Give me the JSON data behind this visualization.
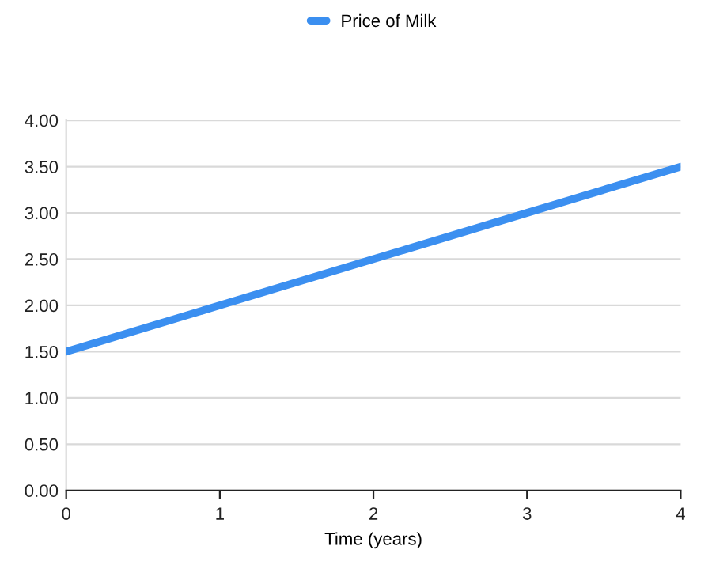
{
  "chart_data": {
    "type": "line",
    "xlabel": "Time (years)",
    "x": [
      0,
      1,
      2,
      3,
      4
    ],
    "series": [
      {
        "name": "Price of Milk",
        "color": "#3b8ff0",
        "values": [
          1.5,
          2.0,
          2.5,
          3.0,
          3.5
        ]
      }
    ],
    "xlim": [
      0,
      4
    ],
    "xticks": [
      0,
      1,
      2,
      3,
      4
    ],
    "ylim": [
      0,
      4
    ],
    "yticks": [
      {
        "value": 0,
        "label": "0.00"
      },
      {
        "value": 0.5,
        "label": "0.50"
      },
      {
        "value": 1,
        "label": "1.00"
      },
      {
        "value": 1.5,
        "label": "1.50"
      },
      {
        "value": 2,
        "label": "2.00"
      },
      {
        "value": 2.5,
        "label": "2.50"
      },
      {
        "value": 3,
        "label": "3.00"
      },
      {
        "value": 3.5,
        "label": "3.50"
      },
      {
        "value": 4,
        "label": "4.00"
      }
    ],
    "grid": "y",
    "legend": "top",
    "marker": "none",
    "line_style": "solid"
  }
}
